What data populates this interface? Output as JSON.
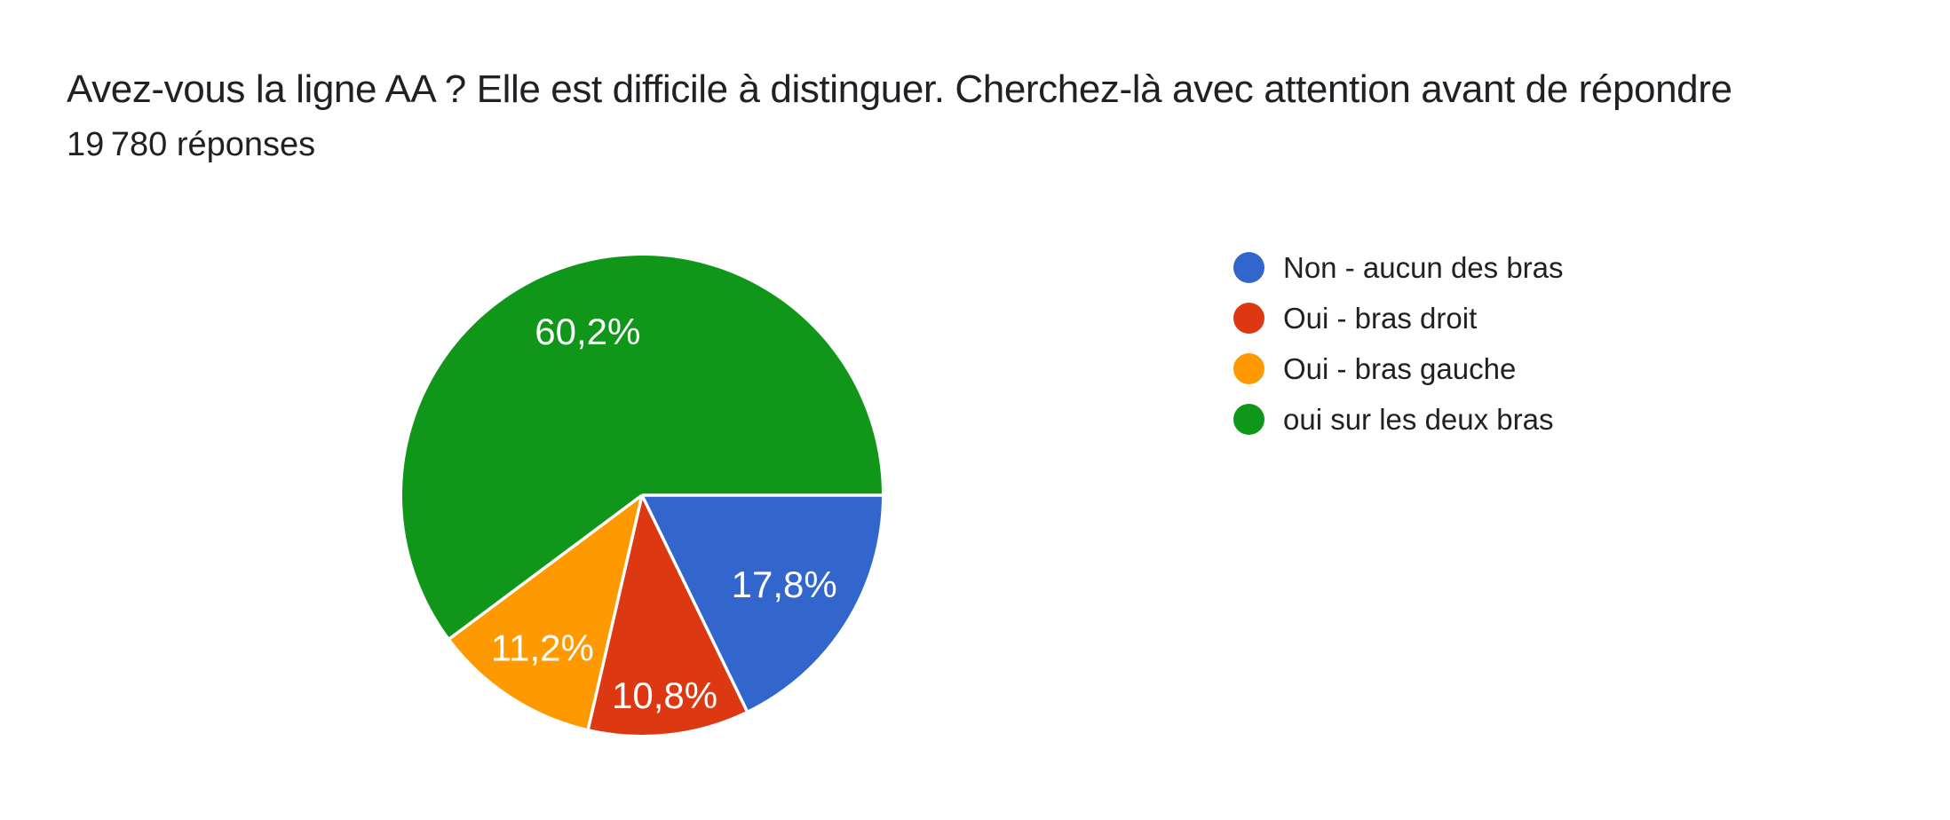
{
  "header": {
    "title": "Avez-vous la ligne AA ? Elle est difficile à distinguer. Cherchez-là avec attention avant de répondre",
    "responses_count": "19 780 réponses"
  },
  "chart_data": {
    "type": "pie",
    "title": "Avez-vous la ligne AA ? Elle est difficile à distinguer. Cherchez-là avec attention avant de répondre",
    "subtitle": "19 780 réponses",
    "unit": "%",
    "start_angle": "east",
    "direction": "clockwise",
    "legend_position": "right",
    "categories": [
      "Non - aucun des bras",
      "Oui - bras droit",
      "Oui - bras gauche",
      "oui sur les deux bras"
    ],
    "values": [
      17.8,
      10.8,
      11.2,
      60.2
    ],
    "slice_labels": [
      "17,8%",
      "10,8%",
      "11,2%",
      "60,2%"
    ],
    "colors": [
      "#3366cc",
      "#dc3912",
      "#ff9900",
      "#109618"
    ],
    "separator_color": "#ffffff"
  }
}
